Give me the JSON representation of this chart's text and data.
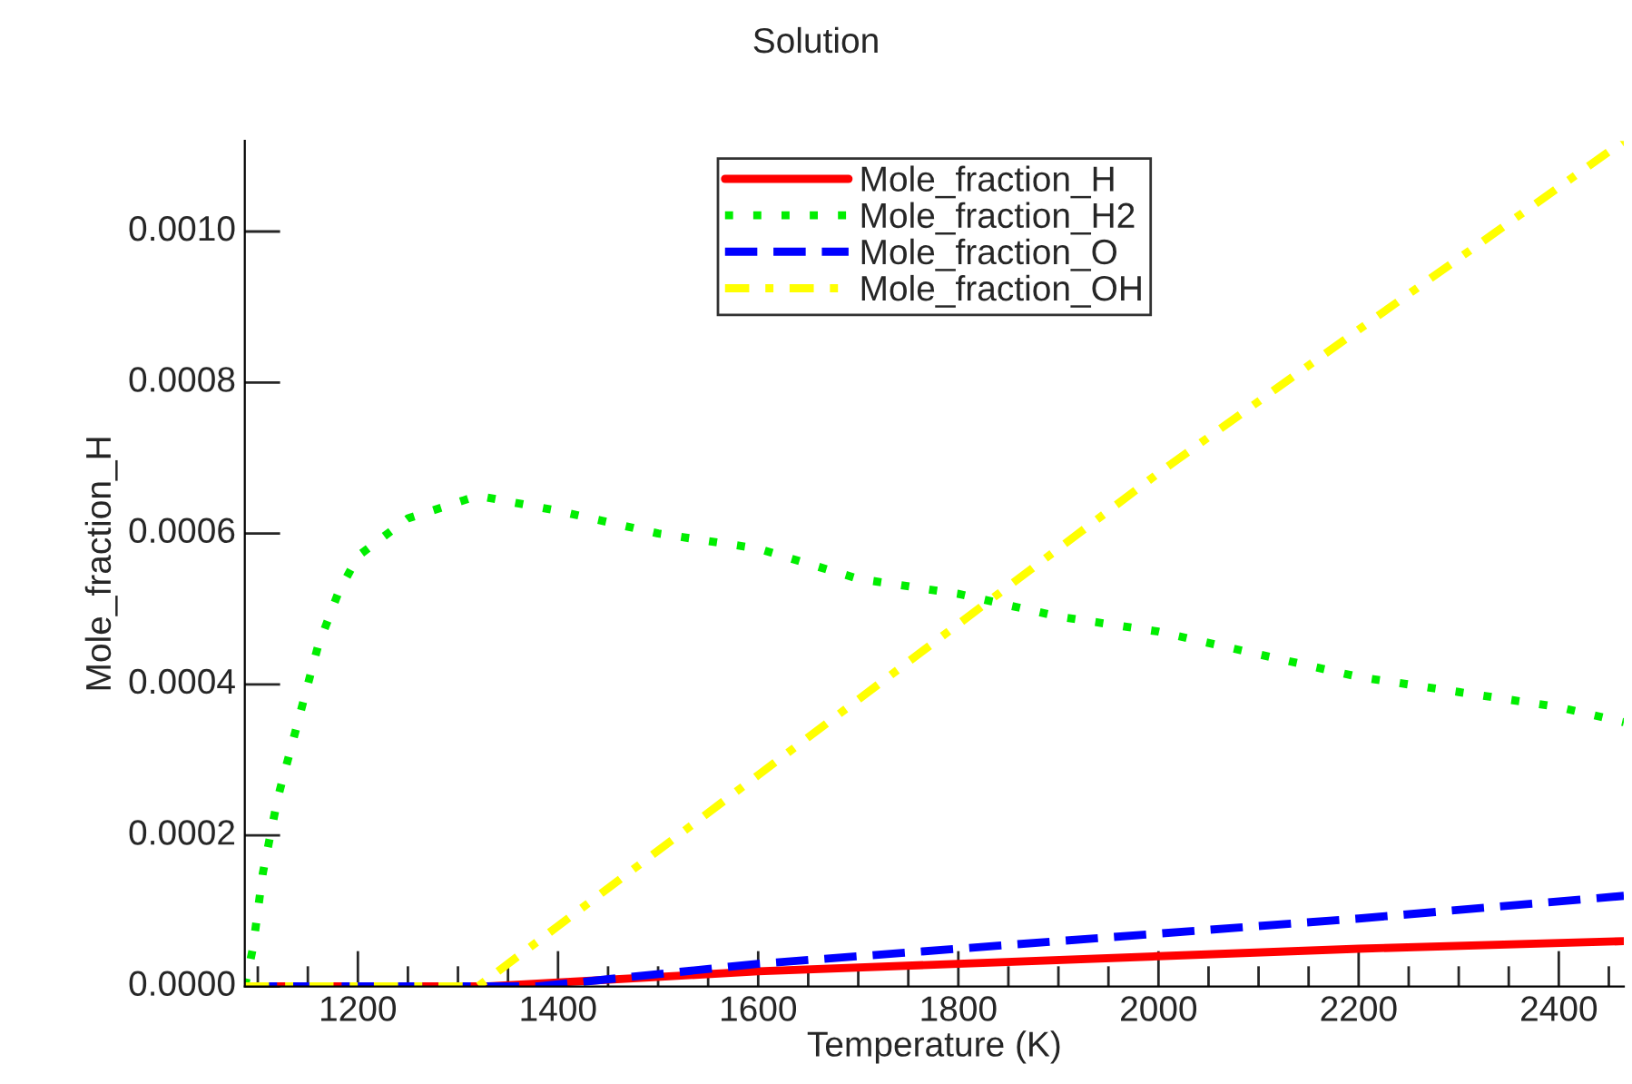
{
  "chart_data": {
    "type": "line",
    "title": "Solution",
    "xlabel": "Temperature (K)",
    "ylabel": "Mole_fraction_H",
    "xlim": [
      1087,
      2465
    ],
    "ylim": [
      0,
      0.00112
    ],
    "xticks": [
      {
        "value": 1100,
        "label": null
      },
      {
        "value": 1150,
        "label": null
      },
      1200,
      {
        "value": 1250,
        "label": null
      },
      {
        "value": 1300,
        "label": null
      },
      {
        "value": 1350,
        "label": null
      },
      1400,
      {
        "value": 1450,
        "label": null
      },
      {
        "value": 1500,
        "label": null
      },
      {
        "value": 1550,
        "label": null
      },
      1600,
      {
        "value": 1650,
        "label": null
      },
      {
        "value": 1700,
        "label": null
      },
      {
        "value": 1750,
        "label": null
      },
      1800,
      {
        "value": 1850,
        "label": null
      },
      {
        "value": 1900,
        "label": null
      },
      {
        "value": 1950,
        "label": null
      },
      2000,
      {
        "value": 2050,
        "label": null
      },
      {
        "value": 2100,
        "label": null
      },
      {
        "value": 2150,
        "label": null
      },
      2200,
      {
        "value": 2250,
        "label": null
      },
      {
        "value": 2300,
        "label": null
      },
      {
        "value": 2350,
        "label": null
      },
      2400,
      {
        "value": 2450,
        "label": null
      }
    ],
    "yticks": [
      {
        "value": 0,
        "label": "0.0000"
      },
      {
        "value": 0.0002,
        "label": "0.0002"
      },
      {
        "value": 0.0004,
        "label": "0.0004"
      },
      {
        "value": 0.0006,
        "label": "0.0006"
      },
      {
        "value": 0.0008,
        "label": "0.0008"
      },
      {
        "value": 0.001,
        "label": "0.0010"
      }
    ],
    "grid": false,
    "legend": "top",
    "marker": "none",
    "series": [
      {
        "name": "Mole_fraction_H",
        "color": "#ff0000",
        "line_style": "solid",
        "x": [
          1087,
          1330,
          1600,
          1800,
          2000,
          2200,
          2465
        ],
        "values": [
          0,
          0,
          2e-05,
          3e-05,
          4e-05,
          5e-05,
          6e-05
        ]
      },
      {
        "name": "Mole_fraction_H2",
        "color": "#00ee00",
        "line_style": "dotted",
        "x": [
          1087,
          1095,
          1105,
          1120,
          1140,
          1160,
          1180,
          1200,
          1250,
          1320,
          1400,
          1500,
          1600,
          1700,
          1800,
          1900,
          2000,
          2100,
          2200,
          2300,
          2400,
          2465
        ],
        "values": [
          0,
          5e-05,
          0.00015,
          0.00025,
          0.00035,
          0.00045,
          0.00052,
          0.00057,
          0.00062,
          0.00065,
          0.00063,
          0.0006,
          0.00058,
          0.00054,
          0.00052,
          0.00049,
          0.00047,
          0.00044,
          0.00041,
          0.00039,
          0.00037,
          0.00035
        ]
      },
      {
        "name": "Mole_fraction_O",
        "color": "#0000ff",
        "line_style": "dashed",
        "x": [
          1087,
          1380,
          1600,
          1800,
          2000,
          2200,
          2465
        ],
        "values": [
          0,
          0,
          3e-05,
          5e-05,
          7e-05,
          9e-05,
          0.00012
        ]
      },
      {
        "name": "Mole_fraction_OH",
        "color": "#ffff00",
        "line_style": "dashdot",
        "x": [
          1087,
          1320,
          1400,
          1600,
          1840,
          2000,
          2200,
          2465
        ],
        "values": [
          0,
          0,
          8e-05,
          0.00028,
          0.00052,
          0.00068,
          0.00087,
          0.00112
        ]
      }
    ]
  }
}
